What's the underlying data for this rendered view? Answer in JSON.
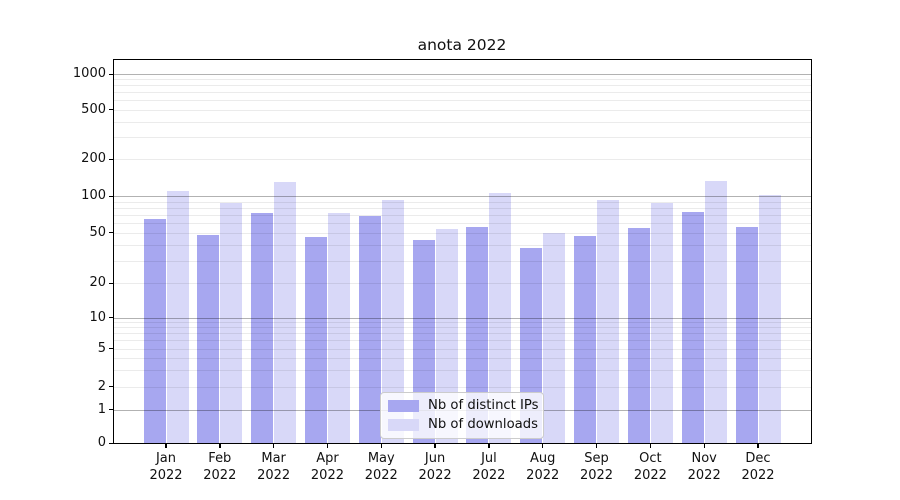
{
  "chart_data": {
    "type": "bar",
    "title": "anota 2022",
    "categories": [
      {
        "label": "Jan",
        "sublabel": "2022"
      },
      {
        "label": "Feb",
        "sublabel": "2022"
      },
      {
        "label": "Mar",
        "sublabel": "2022"
      },
      {
        "label": "Apr",
        "sublabel": "2022"
      },
      {
        "label": "May",
        "sublabel": "2022"
      },
      {
        "label": "Jun",
        "sublabel": "2022"
      },
      {
        "label": "Jul",
        "sublabel": "2022"
      },
      {
        "label": "Aug",
        "sublabel": "2022"
      },
      {
        "label": "Sep",
        "sublabel": "2022"
      },
      {
        "label": "Oct",
        "sublabel": "2022"
      },
      {
        "label": "Nov",
        "sublabel": "2022"
      },
      {
        "label": "Dec",
        "sublabel": "2022"
      }
    ],
    "series": [
      {
        "name": "Nb of distinct IPs",
        "color": "#a7a7f0",
        "values": [
          65,
          48,
          73,
          46,
          68,
          44,
          55,
          38,
          47,
          54,
          74,
          56
        ]
      },
      {
        "name": "Nb of downloads",
        "color": "#d8d8f8",
        "values": [
          110,
          87,
          130,
          72,
          93,
          53,
          105,
          50,
          92,
          87,
          133,
          101
        ]
      }
    ],
    "xlabel": "",
    "ylabel": "",
    "yscale": "symlog",
    "ylim": [
      0,
      1300
    ],
    "ytick_values": [
      0,
      1,
      2,
      5,
      10,
      20,
      50,
      100,
      200,
      500,
      1000
    ],
    "ytick_labels": [
      "0",
      "1",
      "2",
      "5",
      "10",
      "20",
      "50",
      "100",
      "200",
      "500",
      "1000"
    ],
    "major_grid_values": [
      1,
      10,
      100,
      1000
    ],
    "grid": "on",
    "legend_position": "lower center"
  },
  "legend": {
    "items": [
      {
        "label": "Nb of distinct IPs",
        "color": "#a7a7f0"
      },
      {
        "label": "Nb of downloads",
        "color": "#d8d8f8"
      }
    ]
  },
  "colors": {
    "bar_distinct_ips": "#a7a7f0",
    "bar_downloads": "#d8d8f8",
    "major_grid": "#b3b3b3",
    "minor_grid": "#e9e9e9",
    "spine": "#000000",
    "background": "#ffffff",
    "text": "#111111"
  }
}
